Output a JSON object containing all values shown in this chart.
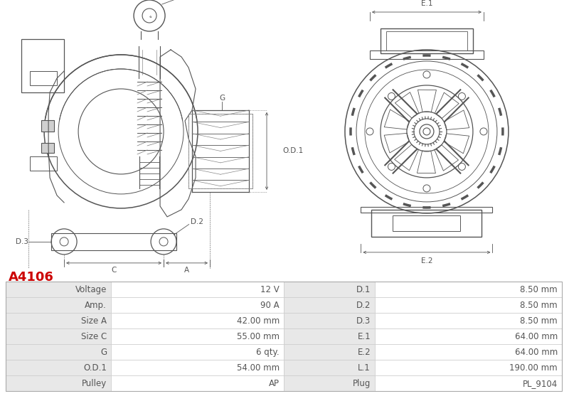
{
  "title": "A4106",
  "title_color": "#cc0000",
  "table_rows": [
    [
      "Voltage",
      "12 V",
      "D.1",
      "8.50 mm"
    ],
    [
      "Amp.",
      "90 A",
      "D.2",
      "8.50 mm"
    ],
    [
      "Size A",
      "42.00 mm",
      "D.3",
      "8.50 mm"
    ],
    [
      "Size C",
      "55.00 mm",
      "E.1",
      "64.00 mm"
    ],
    [
      "G",
      "6 qty.",
      "E.2",
      "64.00 mm"
    ],
    [
      "O.D.1",
      "54.00 mm",
      "L.1",
      "190.00 mm"
    ],
    [
      "Pulley",
      "AP",
      "Plug",
      "PL_9104"
    ]
  ],
  "lc": "#555555",
  "dc": "#555555",
  "header_bg": "#e8e8e8",
  "border_color": "#cccccc",
  "text_color": "#555555",
  "label_color": "#555555"
}
